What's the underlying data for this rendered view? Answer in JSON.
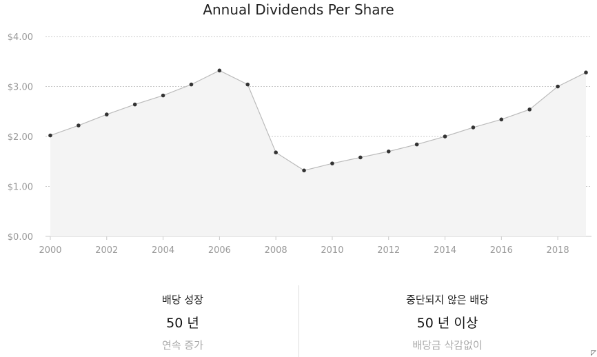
{
  "chart_data": {
    "type": "area",
    "title": "Annual Dividends Per Share",
    "xlabel": "",
    "ylabel": "",
    "x": [
      2000,
      2001,
      2002,
      2003,
      2004,
      2005,
      2006,
      2007,
      2008,
      2009,
      2010,
      2011,
      2012,
      2013,
      2014,
      2015,
      2016,
      2017,
      2018,
      2019
    ],
    "values": [
      2.02,
      2.22,
      2.44,
      2.64,
      2.82,
      3.04,
      3.32,
      3.04,
      1.68,
      1.32,
      1.46,
      1.58,
      1.7,
      1.84,
      2.0,
      2.18,
      2.34,
      2.54,
      3.0,
      3.28
    ],
    "ylim": [
      0,
      4
    ],
    "yticks": [
      "$0.00",
      "$1.00",
      "$2.00",
      "$3.00",
      "$4.00"
    ],
    "xticks": [
      "2000",
      "2002",
      "2004",
      "2006",
      "2008",
      "2010",
      "2012",
      "2014",
      "2016",
      "2018"
    ],
    "grid": true,
    "colors": {
      "line": "#bbbbbb",
      "fill": "#f4f4f4",
      "marker": "#333333",
      "grid": "#c8c8c8"
    }
  },
  "stats": {
    "left": {
      "label": "배당 성장",
      "value": "50 년",
      "sub": "연속 증가"
    },
    "right": {
      "label": "중단되지 않은 배당",
      "value": "50 년 이상",
      "sub": "배당금 삭감없이"
    }
  }
}
